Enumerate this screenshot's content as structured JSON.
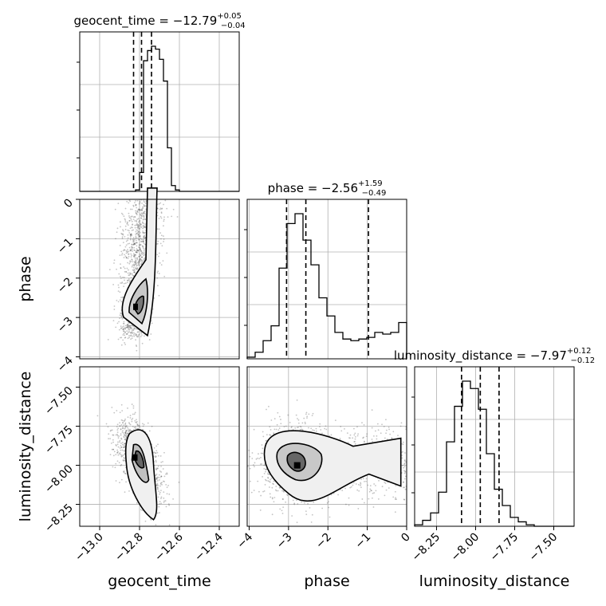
{
  "parameters": [
    "geocent_time",
    "phase",
    "luminosity_distance"
  ],
  "titles": [
    {
      "name": "geocent_time",
      "median": "−12.79",
      "plus": "+0.05",
      "minus": "−0.04"
    },
    {
      "name": "phase",
      "median": "−2.56",
      "plus": "+1.59",
      "minus": "−0.49"
    },
    {
      "name": "luminosity_distance",
      "median": "−7.97",
      "plus": "+0.12",
      "minus": "−0.12"
    }
  ],
  "chart_data": {
    "type": "corner",
    "grid": true,
    "axes": {
      "geocent_time": {
        "range": [
          -13.1,
          -12.3
        ],
        "ticks": [
          -13.0,
          -12.8,
          -12.6,
          -12.4
        ],
        "tick_labels": [
          "−13.0",
          "−12.8",
          "−12.6",
          "−12.4"
        ]
      },
      "phase": {
        "range": [
          -4.05,
          0.0
        ],
        "ticks": [
          -4,
          -3,
          -2,
          -1,
          0
        ],
        "tick_labels": [
          "−4",
          "−3",
          "−2",
          "−1",
          "0"
        ]
      },
      "luminosity_distance": {
        "range": [
          -8.39,
          -7.37
        ],
        "ticks": [
          -8.25,
          -8.0,
          -7.75,
          -7.5
        ],
        "tick_labels": [
          "−8.25",
          "−8.00",
          "−7.75",
          "−7.50"
        ]
      }
    },
    "quantiles": {
      "geocent_time": [
        -12.83,
        -12.79,
        -12.74
      ],
      "phase": [
        -3.05,
        -2.56,
        -0.97
      ],
      "luminosity_distance": [
        -8.09,
        -7.97,
        -7.85
      ]
    },
    "histograms": {
      "geocent_time": {
        "edges_range": [
          -13.1,
          -12.3
        ],
        "bins": 40,
        "counts": [
          0,
          0,
          0,
          0,
          0,
          0,
          0,
          0,
          0,
          0,
          0,
          0,
          0,
          0,
          0.01,
          0.13,
          0.9,
          0.97,
          1.0,
          0.98,
          0.91,
          0.76,
          0.3,
          0.04,
          0.01,
          0,
          0,
          0,
          0,
          0,
          0,
          0,
          0,
          0,
          0,
          0,
          0,
          0,
          0,
          0
        ]
      },
      "phase": {
        "edges_range": [
          -4.05,
          0.0
        ],
        "bins": 20,
        "counts": [
          0.01,
          0.04,
          0.11,
          0.2,
          0.55,
          0.82,
          0.88,
          0.72,
          0.57,
          0.37,
          0.26,
          0.16,
          0.12,
          0.11,
          0.12,
          0.13,
          0.16,
          0.15,
          0.16,
          0.22
        ]
      },
      "luminosity_distance": {
        "edges_range": [
          -8.39,
          -7.37
        ],
        "bins": 20,
        "counts": [
          0.01,
          0.04,
          0.09,
          0.23,
          0.57,
          0.81,
          0.98,
          0.93,
          0.79,
          0.49,
          0.25,
          0.14,
          0.06,
          0.03,
          0.01,
          0,
          0,
          0,
          0,
          0
        ]
      }
    },
    "joint": [
      {
        "x": "geocent_time",
        "y": "phase",
        "peak": [
          -12.8,
          -2.75
        ]
      },
      {
        "x": "geocent_time",
        "y": "luminosity_distance",
        "peak": [
          -12.81,
          -7.94
        ]
      },
      {
        "x": "phase",
        "y": "luminosity_distance",
        "peak": [
          -2.78,
          -7.98
        ]
      }
    ]
  }
}
